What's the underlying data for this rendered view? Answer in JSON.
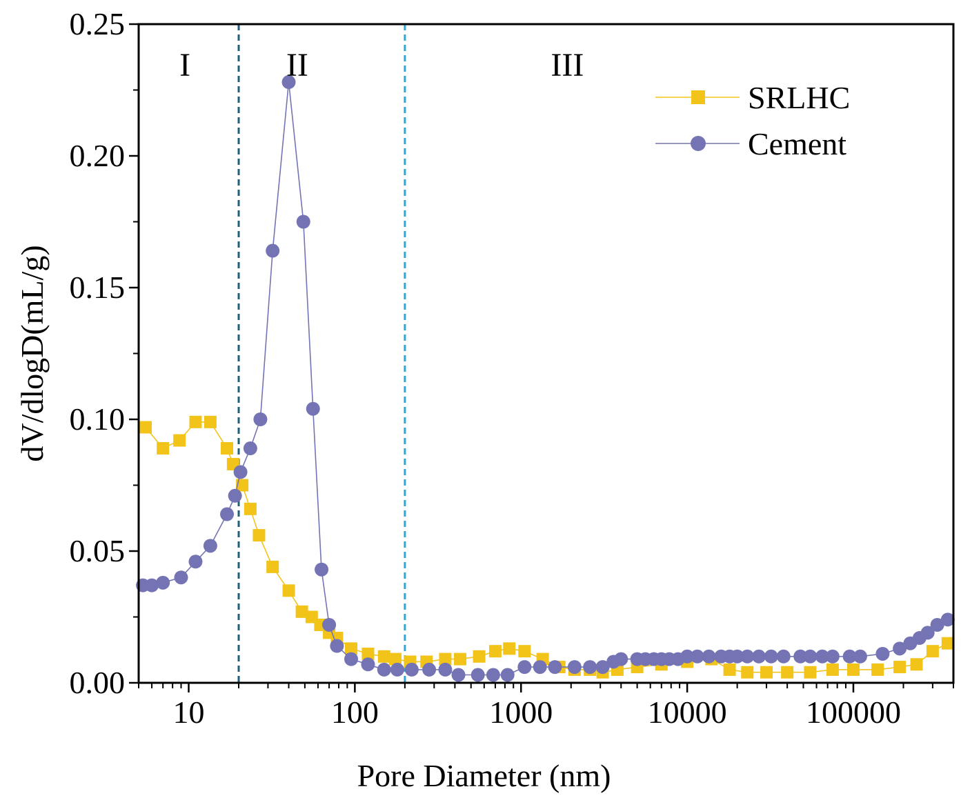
{
  "chart_data": {
    "type": "line",
    "xlabel": "Pore Diameter (nm)",
    "ylabel": "dV/dlogD(mL/g)",
    "xscale": "log",
    "xlim": [
      5,
      400000
    ],
    "ylim": [
      0,
      0.25
    ],
    "x_ticks": [
      10,
      100,
      1000,
      10000,
      100000
    ],
    "x_tick_labels": [
      "10",
      "100",
      "1000",
      "10000",
      "100000"
    ],
    "y_ticks": [
      0,
      0.05,
      0.1,
      0.15,
      0.2,
      0.25
    ],
    "y_tick_labels": [
      "0.00",
      "0.05",
      "0.10",
      "0.15",
      "0.20",
      "0.25"
    ],
    "legend_position": "top-right",
    "grid": false,
    "regions": [
      {
        "label": "I",
        "x": 9.5
      },
      {
        "label": "II",
        "x": 45
      },
      {
        "label": "III",
        "x": 1900
      }
    ],
    "dividers": [
      {
        "x": 20,
        "color": "#1f5f7a"
      },
      {
        "x": 200,
        "color": "#2aa8d8"
      }
    ],
    "series": [
      {
        "name": "SRLHC",
        "color": "#f2c419",
        "marker": "square",
        "x": [
          5.5,
          7,
          8.8,
          11,
          13.5,
          17,
          18.5,
          21,
          23.5,
          26.5,
          32,
          40,
          48,
          55,
          62,
          70,
          78,
          95,
          120,
          150,
          175,
          215,
          270,
          350,
          430,
          560,
          700,
          850,
          1050,
          1350,
          1700,
          2100,
          2600,
          3100,
          3800,
          5000,
          7000,
          10000,
          14000,
          18000,
          23000,
          30000,
          40000,
          55000,
          75000,
          100000,
          140000,
          190000,
          240000,
          300000,
          370000
        ],
        "y": [
          0.097,
          0.089,
          0.092,
          0.099,
          0.099,
          0.089,
          0.083,
          0.075,
          0.066,
          0.056,
          0.044,
          0.035,
          0.027,
          0.025,
          0.022,
          0.019,
          0.017,
          0.013,
          0.011,
          0.01,
          0.009,
          0.008,
          0.008,
          0.009,
          0.009,
          0.01,
          0.012,
          0.013,
          0.012,
          0.009,
          0.006,
          0.005,
          0.005,
          0.004,
          0.005,
          0.006,
          0.007,
          0.008,
          0.009,
          0.005,
          0.004,
          0.004,
          0.004,
          0.004,
          0.005,
          0.005,
          0.005,
          0.006,
          0.007,
          0.012,
          0.015
        ]
      },
      {
        "name": "Cement",
        "color": "#7474b4",
        "marker": "circle",
        "x": [
          5.3,
          6,
          7,
          9,
          11,
          13.5,
          17,
          19,
          20.5,
          23.5,
          27,
          32,
          40,
          49,
          56,
          63,
          70,
          78,
          95,
          120,
          150,
          180,
          220,
          280,
          350,
          420,
          550,
          680,
          830,
          1050,
          1300,
          1600,
          2100,
          2600,
          3100,
          3600,
          4000,
          5000,
          5600,
          6300,
          7000,
          7800,
          8800,
          10000,
          11500,
          13500,
          16000,
          18000,
          20000,
          23000,
          27000,
          32000,
          38000,
          48000,
          55000,
          65000,
          75000,
          95000,
          110000,
          150000,
          190000,
          220000,
          250000,
          280000,
          320000,
          370000
        ],
        "y": [
          0.037,
          0.037,
          0.038,
          0.04,
          0.046,
          0.052,
          0.064,
          0.071,
          0.08,
          0.089,
          0.1,
          0.164,
          0.228,
          0.175,
          0.104,
          0.043,
          0.022,
          0.014,
          0.009,
          0.007,
          0.005,
          0.005,
          0.005,
          0.005,
          0.005,
          0.003,
          0.003,
          0.003,
          0.003,
          0.006,
          0.006,
          0.006,
          0.006,
          0.006,
          0.006,
          0.008,
          0.009,
          0.009,
          0.009,
          0.009,
          0.009,
          0.009,
          0.009,
          0.01,
          0.01,
          0.01,
          0.01,
          0.01,
          0.01,
          0.01,
          0.01,
          0.01,
          0.01,
          0.01,
          0.01,
          0.01,
          0.01,
          0.01,
          0.01,
          0.011,
          0.013,
          0.015,
          0.017,
          0.019,
          0.022,
          0.024
        ]
      }
    ]
  }
}
